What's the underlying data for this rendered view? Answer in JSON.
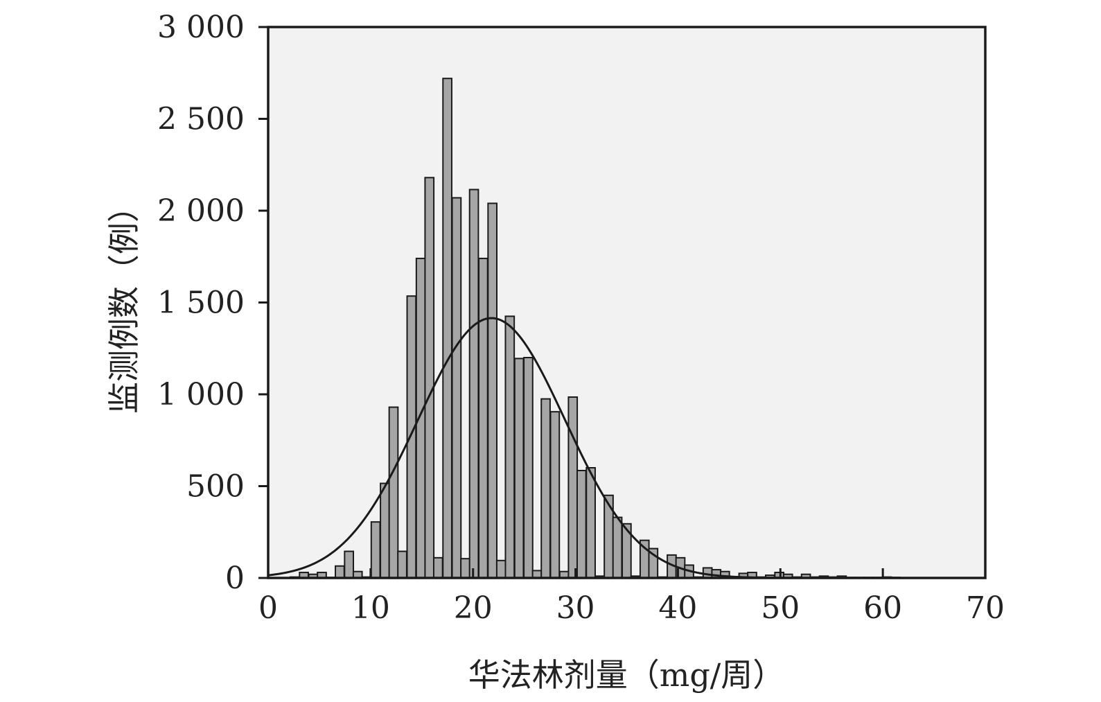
{
  "chart_data": {
    "type": "bar",
    "xlabel": "华法林剂量（mg/周）",
    "ylabel": "监测例数（例）",
    "xlim": [
      0,
      70
    ],
    "ylim": [
      0,
      3000
    ],
    "x_ticks": [
      {
        "value": 0,
        "label": "0"
      },
      {
        "value": 10,
        "label": "10"
      },
      {
        "value": 20,
        "label": "20"
      },
      {
        "value": 30,
        "label": "30"
      },
      {
        "value": 40,
        "label": "40"
      },
      {
        "value": 50,
        "label": "50"
      },
      {
        "value": 60,
        "label": "60"
      },
      {
        "value": 70,
        "label": "70"
      }
    ],
    "y_ticks": [
      {
        "value": 0,
        "label": "0"
      },
      {
        "value": 500,
        "label": "500"
      },
      {
        "value": 1000,
        "label": "1 000"
      },
      {
        "value": 1500,
        "label": "1 500"
      },
      {
        "value": 2000,
        "label": "2 000"
      },
      {
        "value": 2500,
        "label": "2 500"
      },
      {
        "value": 3000,
        "label": "3 000"
      }
    ],
    "bin_width": 0.875,
    "bins": [
      {
        "x": 2.6,
        "value": 5
      },
      {
        "x": 3.5,
        "value": 30
      },
      {
        "x": 4.4,
        "value": 20
      },
      {
        "x": 5.25,
        "value": 30
      },
      {
        "x": 6.1,
        "value": 3
      },
      {
        "x": 7.0,
        "value": 65
      },
      {
        "x": 7.9,
        "value": 145
      },
      {
        "x": 8.75,
        "value": 35
      },
      {
        "x": 9.6,
        "value": 5
      },
      {
        "x": 10.5,
        "value": 305
      },
      {
        "x": 11.4,
        "value": 515
      },
      {
        "x": 12.25,
        "value": 930
      },
      {
        "x": 13.1,
        "value": 145
      },
      {
        "x": 14.0,
        "value": 1535
      },
      {
        "x": 14.9,
        "value": 1740
      },
      {
        "x": 15.75,
        "value": 2180
      },
      {
        "x": 16.6,
        "value": 110
      },
      {
        "x": 17.5,
        "value": 2720
      },
      {
        "x": 18.4,
        "value": 2070
      },
      {
        "x": 19.25,
        "value": 105
      },
      {
        "x": 20.1,
        "value": 2115
      },
      {
        "x": 21.0,
        "value": 1740
      },
      {
        "x": 21.9,
        "value": 2040
      },
      {
        "x": 22.75,
        "value": 95
      },
      {
        "x": 23.6,
        "value": 1425
      },
      {
        "x": 24.5,
        "value": 1195
      },
      {
        "x": 25.4,
        "value": 1200
      },
      {
        "x": 26.25,
        "value": 40
      },
      {
        "x": 27.1,
        "value": 975
      },
      {
        "x": 28.0,
        "value": 905
      },
      {
        "x": 28.9,
        "value": 35
      },
      {
        "x": 29.75,
        "value": 985
      },
      {
        "x": 30.6,
        "value": 585
      },
      {
        "x": 31.5,
        "value": 600
      },
      {
        "x": 32.4,
        "value": 10
      },
      {
        "x": 33.25,
        "value": 450
      },
      {
        "x": 34.1,
        "value": 330
      },
      {
        "x": 35.0,
        "value": 295
      },
      {
        "x": 35.9,
        "value": 10
      },
      {
        "x": 36.75,
        "value": 205
      },
      {
        "x": 37.6,
        "value": 160
      },
      {
        "x": 38.5,
        "value": 5
      },
      {
        "x": 39.4,
        "value": 125
      },
      {
        "x": 40.25,
        "value": 110
      },
      {
        "x": 41.1,
        "value": 70
      },
      {
        "x": 42.0,
        "value": 5
      },
      {
        "x": 42.9,
        "value": 55
      },
      {
        "x": 43.75,
        "value": 45
      },
      {
        "x": 44.6,
        "value": 35
      },
      {
        "x": 45.5,
        "value": 5
      },
      {
        "x": 46.4,
        "value": 25
      },
      {
        "x": 47.25,
        "value": 30
      },
      {
        "x": 48.1,
        "value": 5
      },
      {
        "x": 49.0,
        "value": 15
      },
      {
        "x": 49.9,
        "value": 30
      },
      {
        "x": 50.75,
        "value": 20
      },
      {
        "x": 51.6,
        "value": 5
      },
      {
        "x": 52.5,
        "value": 20
      },
      {
        "x": 53.4,
        "value": 5
      },
      {
        "x": 54.25,
        "value": 10
      },
      {
        "x": 55.1,
        "value": 5
      },
      {
        "x": 56.0,
        "value": 10
      },
      {
        "x": 56.9,
        "value": 3
      },
      {
        "x": 57.75,
        "value": 3
      },
      {
        "x": 58.6,
        "value": 3
      },
      {
        "x": 59.5,
        "value": 3
      },
      {
        "x": 60.4,
        "value": 5
      },
      {
        "x": 61.25,
        "value": 3
      }
    ],
    "curve": {
      "type": "normal",
      "mean": 21.8,
      "peak": 1415,
      "sd": 7.2
    },
    "grid": false,
    "colors": {
      "plot_background": "#f2f2f2",
      "bar_fill": "#a6a6a6",
      "bar_stroke": "#1a1a1a",
      "curve": "#1a1a1a"
    }
  }
}
